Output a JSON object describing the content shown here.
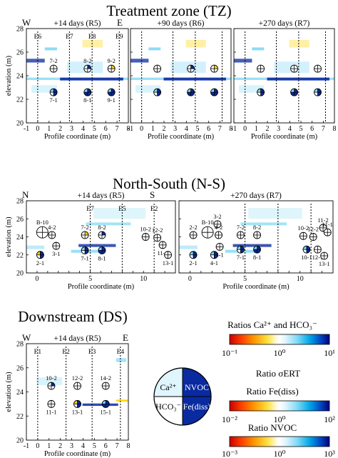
{
  "sections": {
    "tz": {
      "title": "Treatment zone (TZ)"
    },
    "ns": {
      "title": "North-South (N-S)"
    },
    "ds": {
      "title": "Downstream (DS)"
    }
  },
  "colors": {
    "ratio_colormap": [
      "#c80000",
      "#ff4000",
      "#ff9a00",
      "#ffe040",
      "#fffbe0",
      "#ffffff",
      "#dff6fd",
      "#7fd8f5",
      "#00a8e8",
      "#0050c8",
      "#000080"
    ],
    "grid_line": "#000000",
    "well_line": "#000000",
    "fill_blue_light": "#7fd8f5",
    "fill_blue_dark": "#0a2aa0",
    "fill_yellow": "#ffd400"
  },
  "chart_data": [
    {
      "id": "tz-1",
      "type": "heatmap",
      "title": "+14 days (R5)",
      "corner_labels": [
        "W",
        "E"
      ],
      "xlabel": "Profile coordinate (m)",
      "ylabel": "elevation (m)",
      "xlim": [
        -1,
        8
      ],
      "ylim": [
        20,
        28
      ],
      "xticks": [
        -1,
        0,
        1,
        2,
        3,
        4,
        5,
        6,
        7,
        8
      ],
      "yticks": [
        20,
        22,
        24,
        26,
        28
      ],
      "wells": [
        {
          "name": "E6",
          "x": 0
        },
        {
          "name": "E7",
          "x": 2.8
        },
        {
          "name": "E8",
          "x": 4.8
        },
        {
          "name": "E9",
          "x": 7.2
        }
      ],
      "glyphs": [
        {
          "label": "7-2",
          "x": 1.4,
          "y": 24.6,
          "fill": "cross"
        },
        {
          "label": "8-2",
          "x": 4.4,
          "y": 24.6,
          "fill": "cross-blue"
        },
        {
          "label": "9-2",
          "x": 6.5,
          "y": 24.6,
          "fill": "cross-yellow"
        },
        {
          "label": "7-1",
          "x": 1.4,
          "y": 22.6,
          "fill": "half-blue"
        },
        {
          "label": "8-1",
          "x": 4.4,
          "y": 22.6,
          "fill": "full-blue"
        },
        {
          "label": "9-1",
          "x": 6.5,
          "y": 22.6,
          "fill": "full-blue"
        }
      ]
    },
    {
      "id": "tz-2",
      "type": "heatmap",
      "title": "+90 days (R6)",
      "xlabel": "Profile coordinate (m)",
      "xlim": [
        -1,
        8
      ],
      "ylim": [
        20,
        28
      ],
      "xticks": [
        -1,
        0,
        1,
        2,
        3,
        4,
        5,
        6,
        7,
        8
      ],
      "yticks": [
        20,
        22,
        24,
        26,
        28
      ],
      "wells": [
        {
          "name": "",
          "x": 0
        },
        {
          "name": "",
          "x": 2.8
        },
        {
          "name": "",
          "x": 4.8
        },
        {
          "name": "",
          "x": 7.2
        }
      ],
      "glyphs": [
        {
          "label": "",
          "x": 1.4,
          "y": 24.6,
          "fill": "cross"
        },
        {
          "label": "",
          "x": 4.4,
          "y": 24.6,
          "fill": "cross-blue"
        },
        {
          "label": "",
          "x": 6.5,
          "y": 24.6,
          "fill": "cross-yellow"
        },
        {
          "label": "",
          "x": 1.4,
          "y": 22.6,
          "fill": "half-blue"
        },
        {
          "label": "",
          "x": 4.4,
          "y": 22.6,
          "fill": "full-blue"
        },
        {
          "label": "",
          "x": 6.5,
          "y": 22.6,
          "fill": "full-blue"
        }
      ]
    },
    {
      "id": "tz-3",
      "type": "heatmap",
      "title": "+270 days (R7)",
      "xlabel": "Profile coordinate (m)",
      "xlim": [
        -1,
        8
      ],
      "ylim": [
        20,
        28
      ],
      "xticks": [
        -1,
        0,
        1,
        2,
        3,
        4,
        5,
        6,
        7,
        8
      ],
      "yticks": [
        20,
        22,
        24,
        26,
        28
      ],
      "wells": [
        {
          "name": "",
          "x": 0
        },
        {
          "name": "",
          "x": 2.8
        },
        {
          "name": "",
          "x": 4.8
        },
        {
          "name": "",
          "x": 7.2
        }
      ],
      "glyphs": [
        {
          "label": "",
          "x": 1.4,
          "y": 24.6,
          "fill": "cross"
        },
        {
          "label": "",
          "x": 4.4,
          "y": 24.6,
          "fill": "cross"
        },
        {
          "label": "",
          "x": 6.5,
          "y": 24.6,
          "fill": "cross"
        },
        {
          "label": "",
          "x": 1.4,
          "y": 22.6,
          "fill": "half-blue"
        },
        {
          "label": "",
          "x": 4.4,
          "y": 22.6,
          "fill": "full-blue"
        },
        {
          "label": "",
          "x": 6.5,
          "y": 22.6,
          "fill": "half-blue"
        }
      ]
    },
    {
      "id": "ns-1",
      "type": "heatmap",
      "title": "+14 days (R5)",
      "corner_labels": [
        "N",
        "S"
      ],
      "xlabel": "Profile coordinate (m)",
      "ylabel": "elevation (m)",
      "xlim": [
        -1,
        13
      ],
      "ylim": [
        20,
        28
      ],
      "xticks": [
        0,
        1,
        2,
        3,
        4,
        5,
        6,
        7,
        8,
        9,
        10,
        11,
        12
      ],
      "xticklabels": [
        "0",
        "",
        "",
        "",
        "",
        "5",
        "",
        "",
        "",
        "",
        "10",
        "",
        ""
      ],
      "yticks": [
        20,
        22,
        24,
        26,
        28
      ],
      "wells": [
        {
          "name": "E7",
          "x": 5
        },
        {
          "name": "E5",
          "x": 8
        },
        {
          "name": "E2",
          "x": 11
        }
      ],
      "glyphs": [
        {
          "label": "B-10",
          "x": 0.5,
          "y": 24.5,
          "fill": "cross",
          "size": "big"
        },
        {
          "label": "4-2",
          "x": 1.4,
          "y": 24.2,
          "fill": "cross"
        },
        {
          "label": "3-1",
          "x": 1.8,
          "y": 23.0,
          "fill": "cross"
        },
        {
          "label": "2-1",
          "x": 0.3,
          "y": 22.0,
          "fill": "half-blue-yellow"
        },
        {
          "label": "7-2",
          "x": 4.5,
          "y": 24.2,
          "fill": "cross-yellow"
        },
        {
          "label": "8-2",
          "x": 6.1,
          "y": 24.2,
          "fill": "cross-blue"
        },
        {
          "label": "7-1",
          "x": 4.5,
          "y": 22.5,
          "fill": "half-blue"
        },
        {
          "label": "8-1",
          "x": 6.1,
          "y": 22.5,
          "fill": "full-blue"
        },
        {
          "label": "10-2",
          "x": 10.2,
          "y": 24.0,
          "fill": "cross"
        },
        {
          "label": "12-2",
          "x": 11.3,
          "y": 23.9,
          "fill": "cross"
        },
        {
          "label": "11-1",
          "x": 11.8,
          "y": 23.1,
          "fill": "cross"
        },
        {
          "label": "13-1",
          "x": 12.3,
          "y": 22.0,
          "fill": "cross"
        }
      ]
    },
    {
      "id": "ns-2",
      "type": "heatmap",
      "title": "+270 days (R7)",
      "xlabel": "Profile coordinate (m)",
      "xlim": [
        -1,
        13
      ],
      "ylim": [
        20,
        28
      ],
      "xticks": [
        0,
        1,
        2,
        3,
        4,
        5,
        6,
        7,
        8,
        9,
        10,
        11,
        12
      ],
      "xticklabels": [
        "0",
        "",
        "",
        "",
        "",
        "5",
        "",
        "",
        "",
        "",
        "10",
        "",
        ""
      ],
      "yticks": [
        20,
        22,
        24,
        26,
        28
      ],
      "wells": [
        {
          "name": "",
          "x": 5
        },
        {
          "name": "",
          "x": 8
        },
        {
          "name": "",
          "x": 11
        }
      ],
      "glyphs": [
        {
          "label": "B-10",
          "x": 1.6,
          "y": 24.5,
          "fill": "cross",
          "size": "big"
        },
        {
          "label": "3-2",
          "x": 2.5,
          "y": 25.4,
          "fill": "cross"
        },
        {
          "label": "2-2",
          "x": 0.3,
          "y": 24.2,
          "fill": "cross"
        },
        {
          "label": "4-2",
          "x": 2.6,
          "y": 24.2,
          "fill": "cross"
        },
        {
          "label": "3-1",
          "x": 2.7,
          "y": 22.9,
          "fill": "cross"
        },
        {
          "label": "2-1",
          "x": 0.3,
          "y": 22.0,
          "fill": "half-blue"
        },
        {
          "label": "4-1",
          "x": 2.2,
          "y": 22.0,
          "fill": "half-blue"
        },
        {
          "label": "7-2",
          "x": 4.6,
          "y": 24.2,
          "fill": "cross"
        },
        {
          "label": "8-2",
          "x": 6.1,
          "y": 24.2,
          "fill": "cross"
        },
        {
          "label": "7-1",
          "x": 4.6,
          "y": 22.6,
          "fill": "half-blue"
        },
        {
          "label": "8-1",
          "x": 6.1,
          "y": 22.6,
          "fill": "full-blue"
        },
        {
          "label": "10-2",
          "x": 10.3,
          "y": 24.1,
          "fill": "cross"
        },
        {
          "label": "12-2",
          "x": 11.2,
          "y": 24.0,
          "fill": "cross"
        },
        {
          "label": "11-2",
          "x": 12.1,
          "y": 25.0,
          "fill": "cross"
        },
        {
          "label": "11-1",
          "x": 12.5,
          "y": 24.5,
          "fill": "cross"
        },
        {
          "label": "10-1",
          "x": 10.6,
          "y": 22.6,
          "fill": "half-blue"
        },
        {
          "label": "12-1",
          "x": 11.6,
          "y": 22.6,
          "fill": "cross"
        },
        {
          "label": "13-1",
          "x": 12.2,
          "y": 21.9,
          "fill": "cross"
        }
      ]
    },
    {
      "id": "ds-1",
      "type": "heatmap",
      "title": "+14 days (R5)",
      "corner_labels": [
        "W",
        "E"
      ],
      "xlabel": "Profile coordinate (m)",
      "ylabel": "elevation (m)",
      "xlim": [
        -1,
        8
      ],
      "ylim": [
        20,
        28
      ],
      "xticks": [
        -1,
        0,
        1,
        2,
        3,
        4,
        5,
        6,
        7,
        8
      ],
      "yticks": [
        20,
        22,
        24,
        26,
        28
      ],
      "wells": [
        {
          "name": "E1",
          "x": 0
        },
        {
          "name": "E2",
          "x": 2.5
        },
        {
          "name": "E3",
          "x": 4.8
        },
        {
          "name": "E4",
          "x": 7.3
        }
      ],
      "glyphs": [
        {
          "label": "10-2",
          "x": 1.2,
          "y": 24.5,
          "fill": "cross-blue"
        },
        {
          "label": "12-2",
          "x": 3.5,
          "y": 24.5,
          "fill": "cross"
        },
        {
          "label": "14-2",
          "x": 6.0,
          "y": 24.5,
          "fill": "cross"
        },
        {
          "label": "11-1",
          "x": 1.2,
          "y": 23.0,
          "fill": "cross"
        },
        {
          "label": "13-1",
          "x": 3.5,
          "y": 23.0,
          "fill": "half-blue-yellow"
        },
        {
          "label": "15-1",
          "x": 6.0,
          "y": 23.0,
          "fill": "full-blue"
        }
      ]
    }
  ],
  "legend": {
    "glyph_quadrants": {
      "tl": "Ca²⁺",
      "tr": "NVOC",
      "bl": "HCO₃⁻",
      "br": "Fe(diss)"
    },
    "colorbars": [
      {
        "title": "Ratios Ca²⁺ and HCO₃⁻",
        "ticks": [
          "10⁻¹",
          "10⁰",
          "10¹"
        ]
      },
      {
        "title": "Ratio σERT",
        "ticks": []
      },
      {
        "title": "Ratio Fe(diss)",
        "ticks": [
          "10⁻²",
          "10⁰",
          "10²"
        ]
      },
      {
        "title": "Ratio NVOC",
        "ticks": [
          "10⁻³",
          "10⁰",
          "10³"
        ]
      }
    ]
  }
}
